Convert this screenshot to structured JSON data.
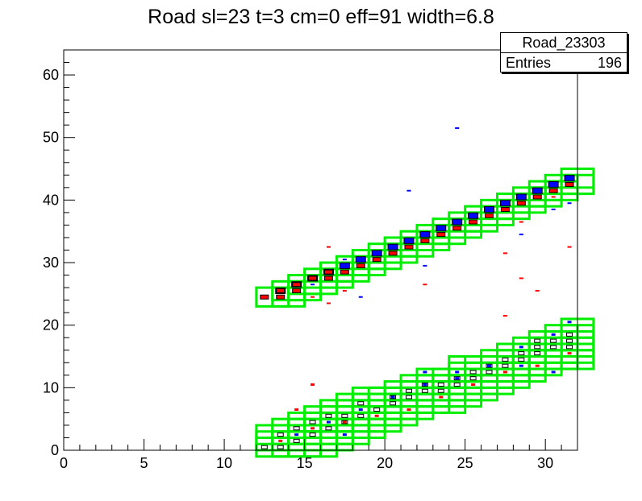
{
  "chart_data": {
    "type": "scatter",
    "title": "Road sl=23 t=3 cm=0 eff=91 width=6.8",
    "xlim": [
      0,
      32
    ],
    "ylim": [
      0,
      64
    ],
    "x_ticks": [
      0,
      5,
      10,
      15,
      20,
      25,
      30
    ],
    "y_ticks": [
      0,
      10,
      20,
      30,
      40,
      50,
      60
    ],
    "stats": {
      "name": "Road_23303",
      "entries_label": "Entries",
      "entries_value": "196"
    },
    "colors": {
      "road_box": "#00ee00",
      "hit_red": "#ff0000",
      "hit_blue": "#0000ff",
      "hit_open": "#000000"
    },
    "upper_band": {
      "road_boxes": [
        [
          12.5,
          24.5
        ],
        [
          13.5,
          25.5
        ],
        [
          14.5,
          26.5
        ],
        [
          15.5,
          27.5
        ],
        [
          16.5,
          28.5
        ],
        [
          17.5,
          29.5
        ],
        [
          18.5,
          30.5
        ],
        [
          19.5,
          31.5
        ],
        [
          20.5,
          32.5
        ],
        [
          21.5,
          33.5
        ],
        [
          22.5,
          34.5
        ],
        [
          23.5,
          35.5
        ],
        [
          24.5,
          36.5
        ],
        [
          25.5,
          37.5
        ],
        [
          26.5,
          38.5
        ],
        [
          27.5,
          39.5
        ],
        [
          28.5,
          40.5
        ],
        [
          29.5,
          41.5
        ],
        [
          30.5,
          42.5
        ],
        [
          31.5,
          43.5
        ],
        [
          13.5,
          24.5
        ],
        [
          14.5,
          25.5
        ],
        [
          15.5,
          26.5
        ],
        [
          16.5,
          27.5
        ],
        [
          17.5,
          28.5
        ],
        [
          18.5,
          29.5
        ],
        [
          19.5,
          30.5
        ],
        [
          20.5,
          31.5
        ],
        [
          21.5,
          32.5
        ],
        [
          22.5,
          33.5
        ],
        [
          23.5,
          34.5
        ],
        [
          24.5,
          35.5
        ],
        [
          25.5,
          36.5
        ],
        [
          26.5,
          37.5
        ],
        [
          27.5,
          38.5
        ],
        [
          28.5,
          39.5
        ],
        [
          29.5,
          40.5
        ],
        [
          30.5,
          41.5
        ],
        [
          31.5,
          42.5
        ]
      ],
      "hits_red": [
        [
          12.5,
          24.5
        ],
        [
          13.5,
          24.5
        ],
        [
          13.5,
          25.5
        ],
        [
          14.5,
          26.5
        ],
        [
          15.5,
          27.5
        ],
        [
          16.5,
          27.5
        ],
        [
          17.5,
          28.5
        ],
        [
          18.5,
          29.5
        ],
        [
          19.5,
          30.5
        ],
        [
          20.5,
          31.5
        ],
        [
          21.5,
          32.5
        ],
        [
          22.5,
          33.5
        ],
        [
          23.5,
          34.5
        ],
        [
          24.5,
          35.5
        ],
        [
          25.5,
          36.5
        ],
        [
          26.5,
          37.5
        ],
        [
          27.5,
          38.5
        ],
        [
          28.5,
          39.5
        ],
        [
          29.5,
          40.5
        ],
        [
          30.5,
          41.5
        ],
        [
          31.5,
          42.5
        ],
        [
          14.5,
          25.5
        ],
        [
          16.5,
          28.5
        ]
      ],
      "hits_blue": [
        [
          13.5,
          25.5
        ],
        [
          14.5,
          26.5
        ],
        [
          15.5,
          27.5
        ],
        [
          16.5,
          28.5
        ],
        [
          17.5,
          29.5
        ],
        [
          18.5,
          30.5
        ],
        [
          19.5,
          31.5
        ],
        [
          20.5,
          32.5
        ],
        [
          21.5,
          33.5
        ],
        [
          22.5,
          34.5
        ],
        [
          23.5,
          35.5
        ],
        [
          24.5,
          36.5
        ],
        [
          25.5,
          37.5
        ],
        [
          26.5,
          38.5
        ],
        [
          27.5,
          39.5
        ],
        [
          28.5,
          40.5
        ],
        [
          29.5,
          41.5
        ],
        [
          30.5,
          42.5
        ],
        [
          31.5,
          43.5
        ]
      ],
      "stray_red": [
        [
          16.5,
          32.5
        ],
        [
          16.5,
          23.5
        ],
        [
          15.5,
          24.5
        ],
        [
          17.5,
          25.5
        ],
        [
          22.5,
          26.5
        ],
        [
          27.5,
          31.5
        ],
        [
          28.5,
          36.5
        ],
        [
          28.5,
          27.5
        ],
        [
          29.5,
          25.5
        ],
        [
          27.5,
          21.5
        ],
        [
          31.5,
          32.5
        ],
        [
          30.5,
          40.5
        ]
      ],
      "stray_blue": [
        [
          24.5,
          51.5
        ],
        [
          21.5,
          41.5
        ],
        [
          18.5,
          24.5
        ],
        [
          17.5,
          30.5
        ],
        [
          22.5,
          29.5
        ],
        [
          28.5,
          34.5
        ],
        [
          30.5,
          38.5
        ],
        [
          31.5,
          39.5
        ],
        [
          15.5,
          26.5
        ]
      ]
    },
    "lower_band": {
      "road_boxes": [
        [
          12.5,
          0.5
        ],
        [
          12.5,
          1.5
        ],
        [
          12.5,
          2.5
        ],
        [
          13.5,
          0.5
        ],
        [
          13.5,
          1.5
        ],
        [
          13.5,
          2.5
        ],
        [
          13.5,
          3.5
        ],
        [
          14.5,
          0.5
        ],
        [
          14.5,
          1.5
        ],
        [
          14.5,
          2.5
        ],
        [
          14.5,
          3.5
        ],
        [
          14.5,
          4.5
        ],
        [
          15.5,
          0.5
        ],
        [
          15.5,
          1.5
        ],
        [
          15.5,
          2.5
        ],
        [
          15.5,
          3.5
        ],
        [
          15.5,
          4.5
        ],
        [
          15.5,
          5.5
        ],
        [
          16.5,
          1.5
        ],
        [
          16.5,
          2.5
        ],
        [
          16.5,
          3.5
        ],
        [
          16.5,
          4.5
        ],
        [
          16.5,
          5.5
        ],
        [
          16.5,
          6.5
        ],
        [
          17.5,
          2.5
        ],
        [
          17.5,
          3.5
        ],
        [
          17.5,
          4.5
        ],
        [
          17.5,
          5.5
        ],
        [
          17.5,
          6.5
        ],
        [
          17.5,
          7.5
        ],
        [
          18.5,
          3.5
        ],
        [
          18.5,
          4.5
        ],
        [
          18.5,
          5.5
        ],
        [
          18.5,
          6.5
        ],
        [
          18.5,
          7.5
        ],
        [
          18.5,
          8.5
        ],
        [
          19.5,
          4.5
        ],
        [
          19.5,
          5.5
        ],
        [
          19.5,
          6.5
        ],
        [
          19.5,
          7.5
        ],
        [
          19.5,
          8.5
        ],
        [
          20.5,
          5.5
        ],
        [
          20.5,
          6.5
        ],
        [
          20.5,
          7.5
        ],
        [
          20.5,
          8.5
        ],
        [
          20.5,
          9.5
        ],
        [
          21.5,
          6.5
        ],
        [
          21.5,
          7.5
        ],
        [
          21.5,
          8.5
        ],
        [
          21.5,
          9.5
        ],
        [
          21.5,
          10.5
        ],
        [
          22.5,
          7.5
        ],
        [
          22.5,
          8.5
        ],
        [
          22.5,
          9.5
        ],
        [
          22.5,
          10.5
        ],
        [
          22.5,
          11.5
        ],
        [
          23.5,
          7.5
        ],
        [
          23.5,
          8.5
        ],
        [
          23.5,
          9.5
        ],
        [
          23.5,
          10.5
        ],
        [
          23.5,
          11.5
        ],
        [
          24.5,
          8.5
        ],
        [
          24.5,
          9.5
        ],
        [
          24.5,
          10.5
        ],
        [
          24.5,
          11.5
        ],
        [
          24.5,
          12.5
        ],
        [
          24.5,
          13.5
        ],
        [
          25.5,
          9.5
        ],
        [
          25.5,
          10.5
        ],
        [
          25.5,
          11.5
        ],
        [
          25.5,
          12.5
        ],
        [
          25.5,
          13.5
        ],
        [
          26.5,
          10.5
        ],
        [
          26.5,
          11.5
        ],
        [
          26.5,
          12.5
        ],
        [
          26.5,
          13.5
        ],
        [
          26.5,
          14.5
        ],
        [
          27.5,
          11.5
        ],
        [
          27.5,
          12.5
        ],
        [
          27.5,
          13.5
        ],
        [
          27.5,
          14.5
        ],
        [
          27.5,
          15.5
        ],
        [
          28.5,
          12.5
        ],
        [
          28.5,
          13.5
        ],
        [
          28.5,
          14.5
        ],
        [
          28.5,
          15.5
        ],
        [
          28.5,
          16.5
        ],
        [
          29.5,
          13.5
        ],
        [
          29.5,
          14.5
        ],
        [
          29.5,
          15.5
        ],
        [
          29.5,
          16.5
        ],
        [
          29.5,
          17.5
        ],
        [
          30.5,
          14.5
        ],
        [
          30.5,
          15.5
        ],
        [
          30.5,
          16.5
        ],
        [
          30.5,
          17.5
        ],
        [
          30.5,
          18.5
        ],
        [
          31.5,
          14.5
        ],
        [
          31.5,
          15.5
        ],
        [
          31.5,
          16.5
        ],
        [
          31.5,
          17.5
        ],
        [
          31.5,
          18.5
        ],
        [
          31.5,
          19.5
        ]
      ],
      "hits_open": [
        [
          12.5,
          0.5
        ],
        [
          13.5,
          0.5
        ],
        [
          13.5,
          2.5
        ],
        [
          14.5,
          1.5
        ],
        [
          14.5,
          3.5
        ],
        [
          15.5,
          2.5
        ],
        [
          15.5,
          4.5
        ],
        [
          16.5,
          3.5
        ],
        [
          16.5,
          5.5
        ],
        [
          17.5,
          4.5
        ],
        [
          17.5,
          5.5
        ],
        [
          18.5,
          5.5
        ],
        [
          18.5,
          7.5
        ],
        [
          19.5,
          6.5
        ],
        [
          20.5,
          7.5
        ],
        [
          20.5,
          8.5
        ],
        [
          21.5,
          8.5
        ],
        [
          21.5,
          9.5
        ],
        [
          22.5,
          9.5
        ],
        [
          22.5,
          10.5
        ],
        [
          23.5,
          9.5
        ],
        [
          23.5,
          10.5
        ],
        [
          24.5,
          10.5
        ],
        [
          24.5,
          11.5
        ],
        [
          25.5,
          12.5
        ],
        [
          25.5,
          11.5
        ],
        [
          26.5,
          12.5
        ],
        [
          26.5,
          13.5
        ],
        [
          27.5,
          13.5
        ],
        [
          27.5,
          14.5
        ],
        [
          28.5,
          14.5
        ],
        [
          28.5,
          15.5
        ],
        [
          29.5,
          15.5
        ],
        [
          29.5,
          16.5
        ],
        [
          30.5,
          16.5
        ],
        [
          30.5,
          17.5
        ],
        [
          31.5,
          17.5
        ],
        [
          31.5,
          18.5
        ],
        [
          31.5,
          16.5
        ],
        [
          29.5,
          17.5
        ]
      ],
      "hits_red": [
        [
          13.5,
          1.5
        ],
        [
          15.5,
          3.5
        ],
        [
          17.5,
          4.5
        ],
        [
          19.5,
          5.5
        ],
        [
          21.5,
          6.5
        ],
        [
          23.5,
          8.5
        ],
        [
          25.5,
          10.5
        ],
        [
          27.5,
          12.5
        ],
        [
          29.5,
          13.5
        ],
        [
          31.5,
          15.5
        ],
        [
          15.5,
          10.5
        ],
        [
          14.5,
          6.5
        ]
      ],
      "hits_blue": [
        [
          14.5,
          2.5
        ],
        [
          16.5,
          4.5
        ],
        [
          18.5,
          6.5
        ],
        [
          20.5,
          8.5
        ],
        [
          22.5,
          10.5
        ],
        [
          24.5,
          12.5
        ],
        [
          26.5,
          13.5
        ],
        [
          28.5,
          16.5
        ],
        [
          30.5,
          18.5
        ],
        [
          31.5,
          20.5
        ],
        [
          17.5,
          2.5
        ],
        [
          30.5,
          12.5
        ],
        [
          22.5,
          12.5
        ],
        [
          24.5,
          11.5
        ],
        [
          28.5,
          13.5
        ]
      ]
    }
  }
}
